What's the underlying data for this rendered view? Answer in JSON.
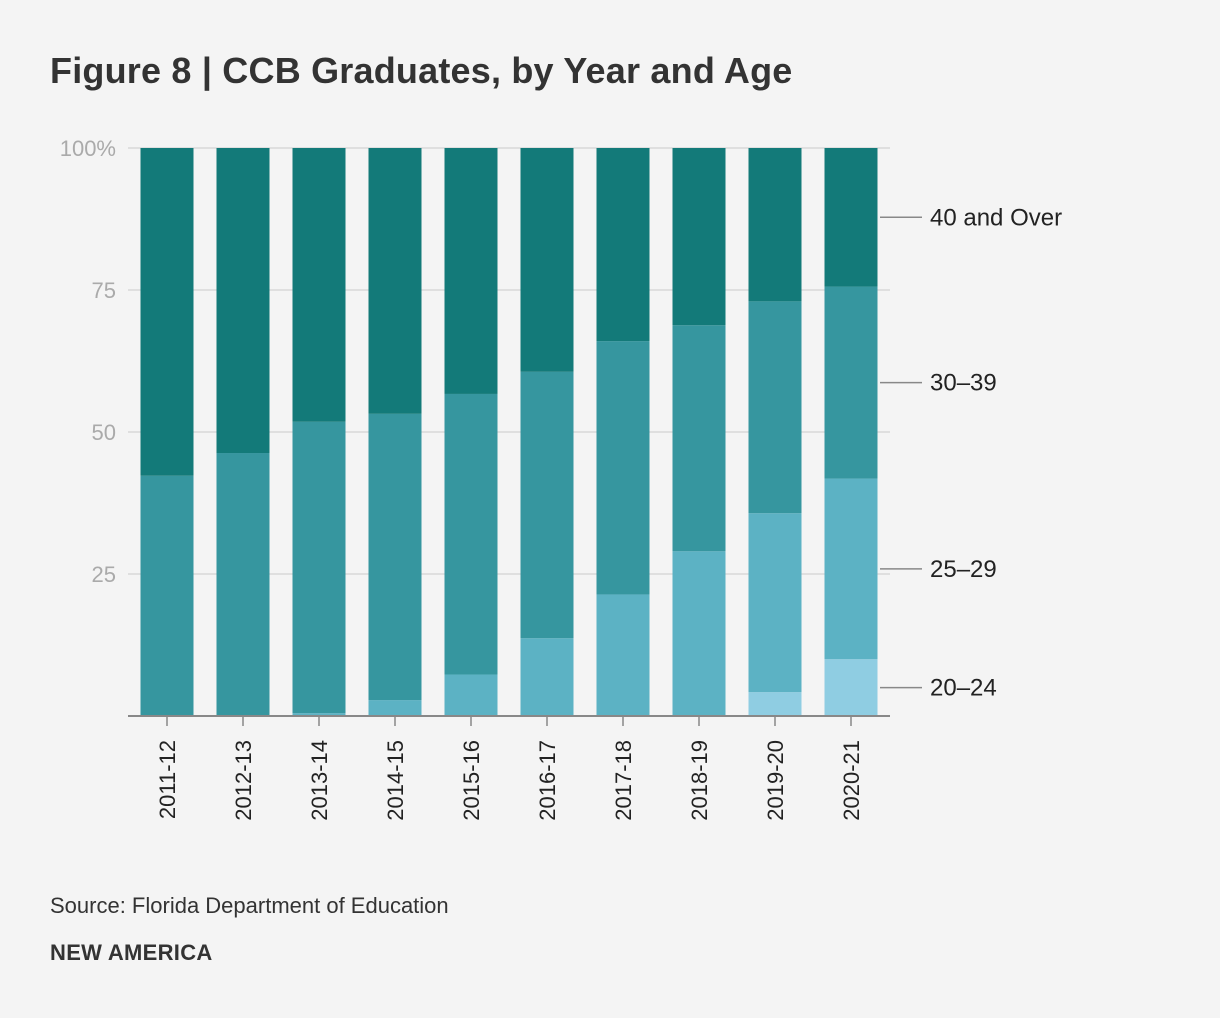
{
  "figure": {
    "title": "Figure 8 | CCB Graduates, by Year and Age",
    "source": "Source: Florida Department of Education",
    "brand": "NEW AMERICA"
  },
  "colors": {
    "20–24": "#8fcde2",
    "25–29": "#5cb2c4",
    "30–39": "#36969f",
    "40 and Over": "#137a79",
    "grid": "#d8d8d8",
    "axis": "#888888",
    "leader": "#888888"
  },
  "chart_data": {
    "type": "bar",
    "stacked": true,
    "title": "Figure 8 | CCB Graduates, by Year and Age",
    "xlabel": "",
    "ylabel": "",
    "ylim": [
      0,
      100
    ],
    "y_ticks": [
      {
        "value": 100,
        "label": "100%"
      },
      {
        "value": 75,
        "label": "75"
      },
      {
        "value": 50,
        "label": "50"
      },
      {
        "value": 25,
        "label": "25"
      }
    ],
    "grid": true,
    "legend_position": "right, inline labels",
    "categories": [
      "2011-12",
      "2012-13",
      "2013-14",
      "2014-15",
      "2015-16",
      "2016-17",
      "2017-18",
      "2018-19",
      "2019-20",
      "2020-21"
    ],
    "series": [
      {
        "name": "20–24",
        "values": [
          0,
          0,
          0,
          0,
          0,
          0,
          0,
          0,
          4.2,
          10
        ]
      },
      {
        "name": "25–29",
        "values": [
          0,
          0,
          0.5,
          2.8,
          7.3,
          13.7,
          21.4,
          29,
          31.5,
          31.8
        ]
      },
      {
        "name": "30–39",
        "values": [
          42.3,
          46.3,
          51.3,
          50.4,
          49.4,
          46.9,
          44.6,
          39.8,
          37.3,
          33.8
        ]
      },
      {
        "name": "40 and Over",
        "values": [
          57.7,
          53.7,
          48.2,
          46.8,
          43.3,
          39.4,
          34,
          31.2,
          27,
          24.4
        ]
      }
    ]
  }
}
